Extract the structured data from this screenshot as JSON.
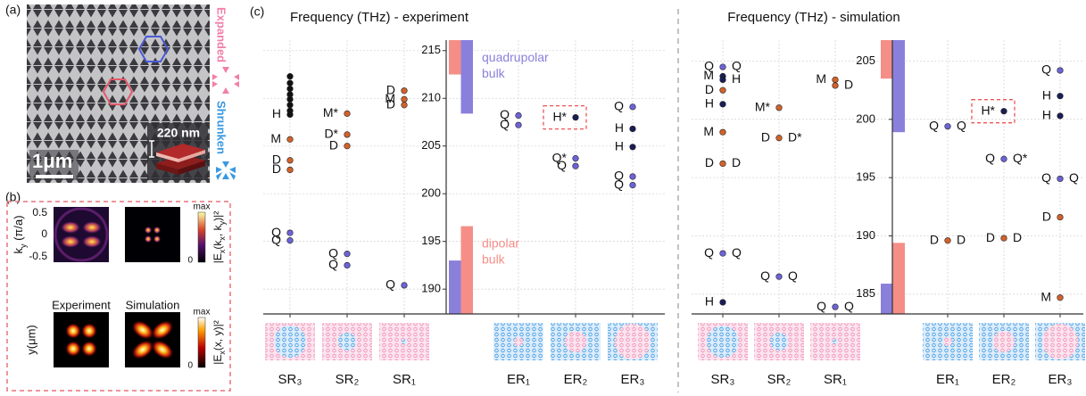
{
  "panel_labels": [
    "(a)",
    "(b)",
    "(c)"
  ],
  "panel_a": {
    "scale_bar": "1μm",
    "thickness": "220 nm",
    "expanded": "Expanded",
    "shrunken": "Shrunken"
  },
  "panel_b": {
    "k_label": [
      "k",
      "y",
      " (π/a)"
    ],
    "k_ticks": [
      "0.5",
      "0",
      "-0.5"
    ],
    "experiment": "Experiment",
    "simulation": "Simulation",
    "r_label": "y(μm)",
    "colorbar_k": {
      "max": "max",
      "min": "0",
      "label": [
        "|E",
        "x",
        "(k",
        "x",
        ", k",
        "y",
        ")|²"
      ]
    },
    "colorbar_r": {
      "max": "max",
      "min": "0",
      "label": [
        "|E",
        "x",
        "(x, y)|²"
      ]
    }
  },
  "chart_data": [
    {
      "type": "scatter",
      "title": "Frequency (THz) - experiment",
      "ylim": [
        187.4,
        216.1
      ],
      "yticks": [
        190,
        195,
        200,
        205,
        210,
        215
      ],
      "grid": true,
      "categories": [
        "SR₃",
        "SR₂",
        "SR₁",
        null,
        "ER₁",
        "ER₂",
        "ER₃"
      ],
      "bands": [
        {
          "name": "quadrupolar bulk",
          "color": "#8a80dc",
          "ranges": [
            [
              208.4,
              216.1
            ],
            [
              187.4,
              193.0
            ]
          ]
        },
        {
          "name": "dipolar bulk",
          "color": "#f48e87",
          "ranges": [
            [
              212.5,
              216.1
            ],
            [
              187.4,
              196.6
            ]
          ]
        }
      ],
      "groups": [
        [
          {
            "value": 212.3,
            "color": "#111111"
          },
          {
            "value": 211.6,
            "color": "#111111"
          },
          {
            "value": 211.0,
            "color": "#111111"
          },
          {
            "value": 210.4,
            "color": "#111111"
          },
          {
            "value": 209.9,
            "color": "#111111"
          },
          {
            "value": 209.3,
            "color": "#111111"
          },
          {
            "value": 208.7,
            "color": "#111111"
          },
          {
            "value": 208.3,
            "color": "#111111",
            "left": "H"
          },
          {
            "value": 205.7,
            "color": "#d2622a",
            "left": "M"
          },
          {
            "value": 203.5,
            "color": "#d2622a",
            "left": "D"
          },
          {
            "value": 202.5,
            "color": "#d2622a",
            "left": "D"
          },
          {
            "value": 195.9,
            "color": "#6c63d8",
            "left": "Q"
          },
          {
            "value": 195.1,
            "color": "#6c63d8",
            "left": "Q"
          }
        ],
        [
          {
            "value": 208.4,
            "color": "#d2622a",
            "left": "M*"
          },
          {
            "value": 206.2,
            "color": "#d2622a",
            "left": "D*"
          },
          {
            "value": 205.0,
            "color": "#d2622a",
            "left": "D"
          },
          {
            "value": 193.7,
            "color": "#6c63d8",
            "left": "Q"
          },
          {
            "value": 192.5,
            "color": "#6c63d8",
            "left": "Q"
          }
        ],
        [
          {
            "value": 210.8,
            "color": "#d2622a",
            "left": "D"
          },
          {
            "value": 209.9,
            "color": "#d2622a",
            "left": "M"
          },
          {
            "value": 209.3,
            "color": "#d2622a",
            "left": "D"
          },
          {
            "value": 190.4,
            "color": "#6c63d8",
            "left": "Q"
          }
        ],
        null,
        [
          {
            "value": 208.2,
            "color": "#6c63d8",
            "left": "Q"
          },
          {
            "value": 207.2,
            "color": "#6c63d8",
            "left": "Q"
          }
        ],
        [
          {
            "value": 208.0,
            "color": "#1a1d55",
            "left": "H*",
            "highlight": true
          },
          {
            "value": 203.7,
            "color": "#6c63d8",
            "left": "Q*"
          },
          {
            "value": 202.9,
            "color": "#6c63d8",
            "left": "Q"
          }
        ],
        [
          {
            "value": 209.1,
            "color": "#6c63d8",
            "left": "Q"
          },
          {
            "value": 206.8,
            "color": "#1a1d55",
            "left": "H"
          },
          {
            "value": 204.9,
            "color": "#1a1d55",
            "left": "H"
          },
          {
            "value": 201.8,
            "color": "#6c63d8",
            "left": "Q"
          },
          {
            "value": 200.9,
            "color": "#6c63d8",
            "left": "Q"
          }
        ]
      ]
    },
    {
      "type": "scatter",
      "title": "Frequency (THz) - simulation",
      "ylim": [
        183.3,
        206.8
      ],
      "yticks": [
        185,
        190,
        195,
        200,
        205
      ],
      "grid": true,
      "categories": [
        "SR₃",
        "SR₂",
        "SR₁",
        null,
        "ER₁",
        "ER₂",
        "ER₃"
      ],
      "bands": [
        {
          "color": "#8a80dc",
          "ranges": [
            [
              198.9,
              206.8
            ],
            [
              183.3,
              185.9
            ]
          ]
        },
        {
          "color": "#f48e87",
          "ranges": [
            [
              203.5,
              206.8
            ],
            [
              183.3,
              189.4
            ]
          ]
        }
      ],
      "groups": [
        [
          {
            "value": 204.5,
            "color": "#6c63d8",
            "left": "Q",
            "right": "Q"
          },
          {
            "value": 203.7,
            "color": "#1a1d55",
            "left": "M"
          },
          {
            "value": 203.4,
            "color": "#1a1d55",
            "right": "H"
          },
          {
            "value": 202.5,
            "color": "#d2622a",
            "left": "D"
          },
          {
            "value": 201.3,
            "color": "#1a1d55",
            "left": "H"
          },
          {
            "value": 198.9,
            "color": "#d2622a",
            "left": "M"
          },
          {
            "value": 196.2,
            "color": "#d2622a",
            "left": "D",
            "right": "D"
          },
          {
            "value": 188.5,
            "color": "#6c63d8",
            "left": "Q",
            "right": "Q"
          },
          {
            "value": 184.3,
            "color": "#1a1d55",
            "left": "H"
          }
        ],
        [
          {
            "value": 201.0,
            "color": "#d2622a",
            "left": "M*"
          },
          {
            "value": 198.4,
            "color": "#d2622a",
            "left": "D",
            "right": "D*"
          },
          {
            "value": 186.5,
            "color": "#6c63d8",
            "left": "Q",
            "right": "Q"
          }
        ],
        [
          {
            "value": 203.4,
            "color": "#d2622a",
            "left": "M"
          },
          {
            "value": 202.9,
            "color": "#d2622a",
            "right": "D"
          },
          {
            "value": 183.9,
            "color": "#6c63d8",
            "left": "Q",
            "right": "Q"
          }
        ],
        null,
        [
          {
            "value": 199.4,
            "color": "#6c63d8",
            "left": "Q",
            "right": "Q"
          },
          {
            "value": 189.6,
            "color": "#d2622a",
            "left": "D",
            "right": "D"
          }
        ],
        [
          {
            "value": 200.7,
            "color": "#1a1d55",
            "left": "H*",
            "highlight": true
          },
          {
            "value": 196.6,
            "color": "#6c63d8",
            "left": "Q",
            "right": "Q*"
          },
          {
            "value": 189.8,
            "color": "#d2622a",
            "left": "D",
            "right": "D"
          }
        ],
        [
          {
            "value": 204.2,
            "color": "#6c63d8",
            "left": "Q"
          },
          {
            "value": 202.0,
            "color": "#1a1d55",
            "left": "H"
          },
          {
            "value": 200.3,
            "color": "#1a1d55",
            "left": "H"
          },
          {
            "value": 194.9,
            "color": "#6c63d8",
            "left": "Q",
            "right": "Q"
          },
          {
            "value": 191.6,
            "color": "#d2622a",
            "left": "D"
          },
          {
            "value": 184.7,
            "color": "#d2622a",
            "left": "M"
          }
        ]
      ]
    }
  ]
}
